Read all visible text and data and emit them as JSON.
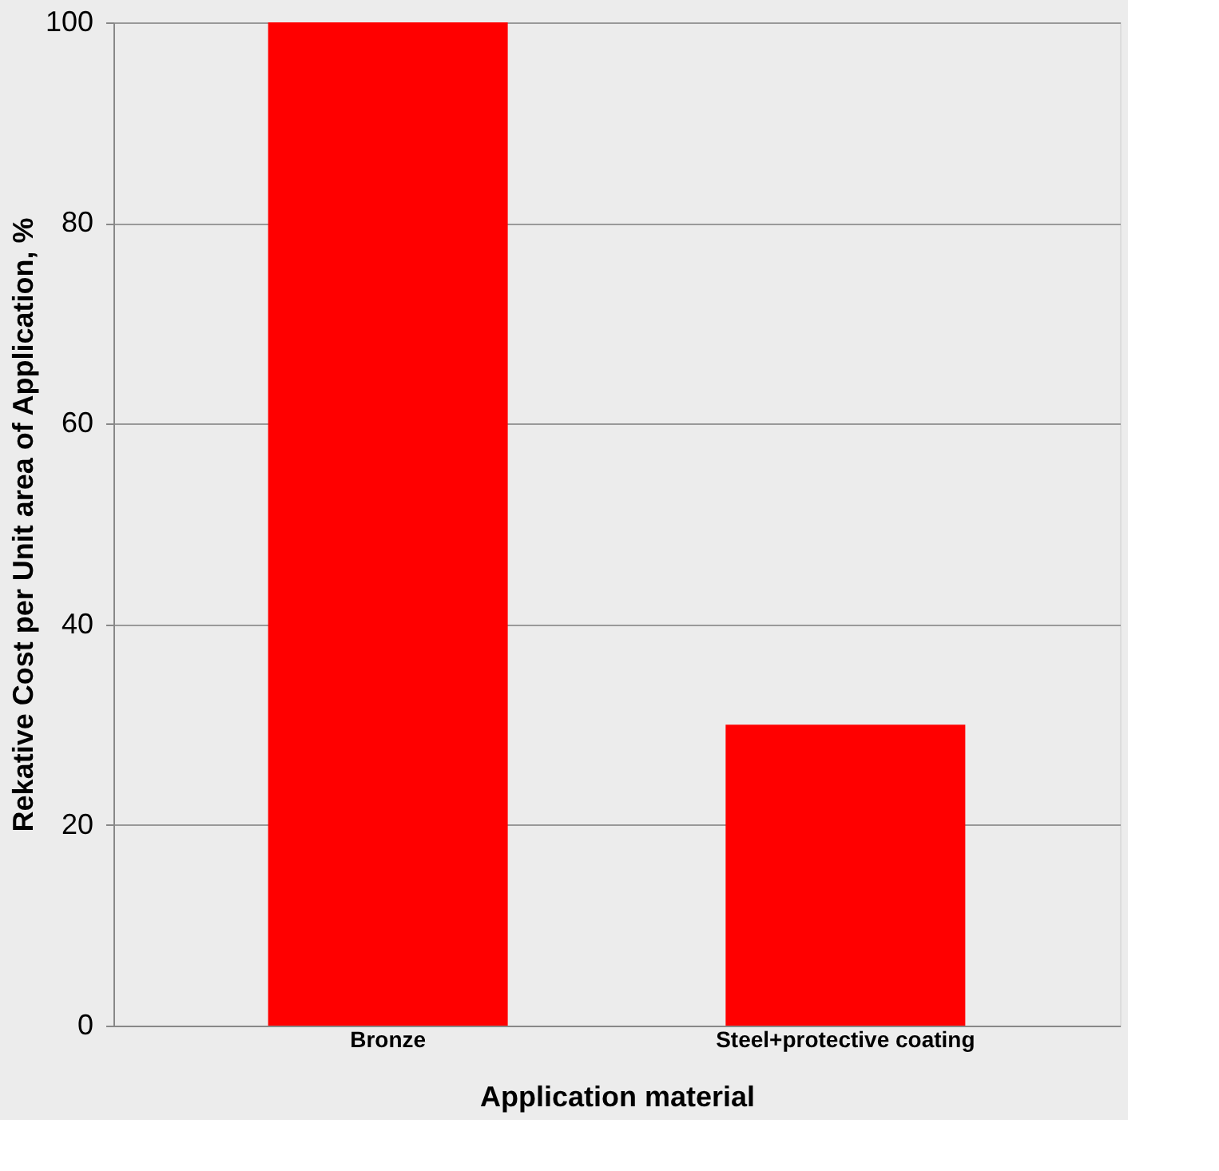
{
  "chart_data": {
    "type": "bar",
    "categories": [
      "Bronze",
      "Steel+protective coating"
    ],
    "values": [
      100,
      30
    ],
    "color": "#ff0000",
    "xlabel": "Application material",
    "ylabel": "Rekative Cost per Unit area of Application, %",
    "ylim": [
      0,
      100
    ],
    "yticks": [
      0,
      20,
      40,
      60,
      80,
      100
    ],
    "grid": "y"
  }
}
